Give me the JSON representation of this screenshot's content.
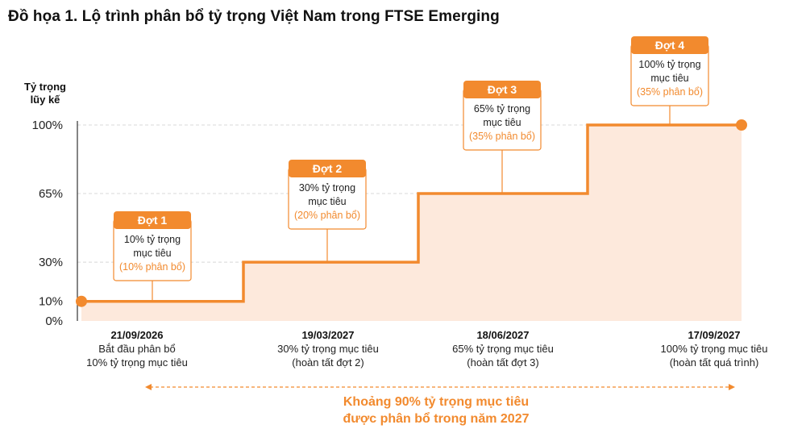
{
  "title": "Đồ họa 1. Lộ trình phân bổ tỷ trọng Việt Nam trong FTSE Emerging",
  "chart_data": {
    "type": "line",
    "ylabel_lines": [
      "Tỷ trọng",
      "lũy kế"
    ],
    "y_ticks": [
      "0%",
      "10%",
      "30%",
      "65%",
      "100%"
    ],
    "ylim": [
      0,
      100
    ],
    "step_series": [
      10,
      30,
      65,
      100
    ],
    "stages": [
      {
        "title": "Đợt 1",
        "line1": "10% tỷ trọng",
        "line2": "mục tiêu",
        "alloc": "(10% phân bổ)"
      },
      {
        "title": "Đợt 2",
        "line1": "30% tỷ trọng",
        "line2": "mục tiêu",
        "alloc": "(20% phân bổ)"
      },
      {
        "title": "Đợt 3",
        "line1": "65% tỷ trọng",
        "line2": "mục tiêu",
        "alloc": "(35% phân bổ)"
      },
      {
        "title": "Đợt 4",
        "line1": "100% tỷ trọng",
        "line2": "mục tiêu",
        "alloc": "(35% phân bổ)"
      }
    ],
    "milestones": [
      {
        "date": "21/09/2026",
        "line1": "Bắt đầu phân bổ",
        "line2": "10% tỷ trọng mục tiêu"
      },
      {
        "date": "19/03/2027",
        "line1": "30% tỷ trọng mục tiêu",
        "line2": "(hoàn tất đợt 2)"
      },
      {
        "date": "18/06/2027",
        "line1": "65% tỷ trọng mục tiêu",
        "line2": "(hoàn tất đợt 3)"
      },
      {
        "date": "17/09/2027",
        "line1": "100% tỷ trọng mục tiêu",
        "line2": "(hoàn tất quá trình)"
      }
    ],
    "footnote_lines": [
      "Khoảng 90% tỷ trọng mục tiêu",
      "được phân bổ trong năm 2027"
    ],
    "colors": {
      "accent": "#f28a2e",
      "fill": "#fde9dc",
      "grid": "#d8d8d8",
      "axis": "#333333"
    },
    "grid": "dashed-horizontal",
    "legend": "none"
  }
}
